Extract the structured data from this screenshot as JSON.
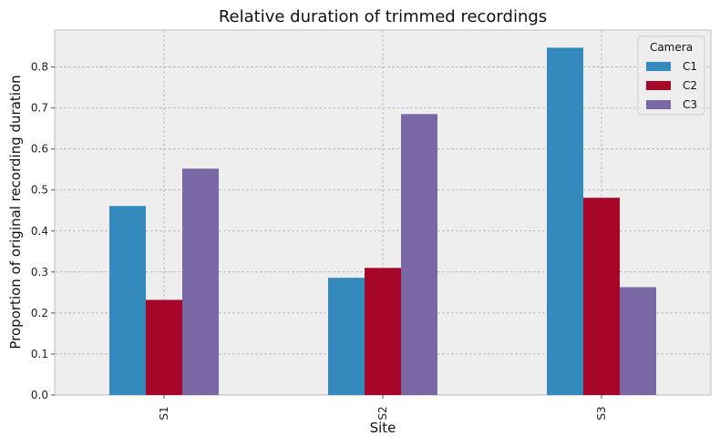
{
  "chart_data": {
    "type": "bar",
    "title": "Relative duration of trimmed recordings",
    "xlabel": "Site",
    "ylabel": "Proportion of original recording duration",
    "categories": [
      "S1",
      "S2",
      "S3"
    ],
    "series": [
      {
        "name": "C1",
        "values": [
          0.461,
          0.286,
          0.847
        ]
      },
      {
        "name": "C2",
        "values": [
          0.232,
          0.31,
          0.481
        ]
      },
      {
        "name": "C3",
        "values": [
          0.552,
          0.685,
          0.263
        ]
      }
    ],
    "ylim": [
      0,
      0.89
    ],
    "yticks": [
      "0.0",
      "0.1",
      "0.2",
      "0.3",
      "0.4",
      "0.5",
      "0.6",
      "0.7",
      "0.8"
    ],
    "grid": true,
    "legend": {
      "title": "Camera",
      "placement": "top-right"
    },
    "colors": [
      "#348abd",
      "#a60628",
      "#7a68a6"
    ],
    "background": "#eeeeee"
  }
}
